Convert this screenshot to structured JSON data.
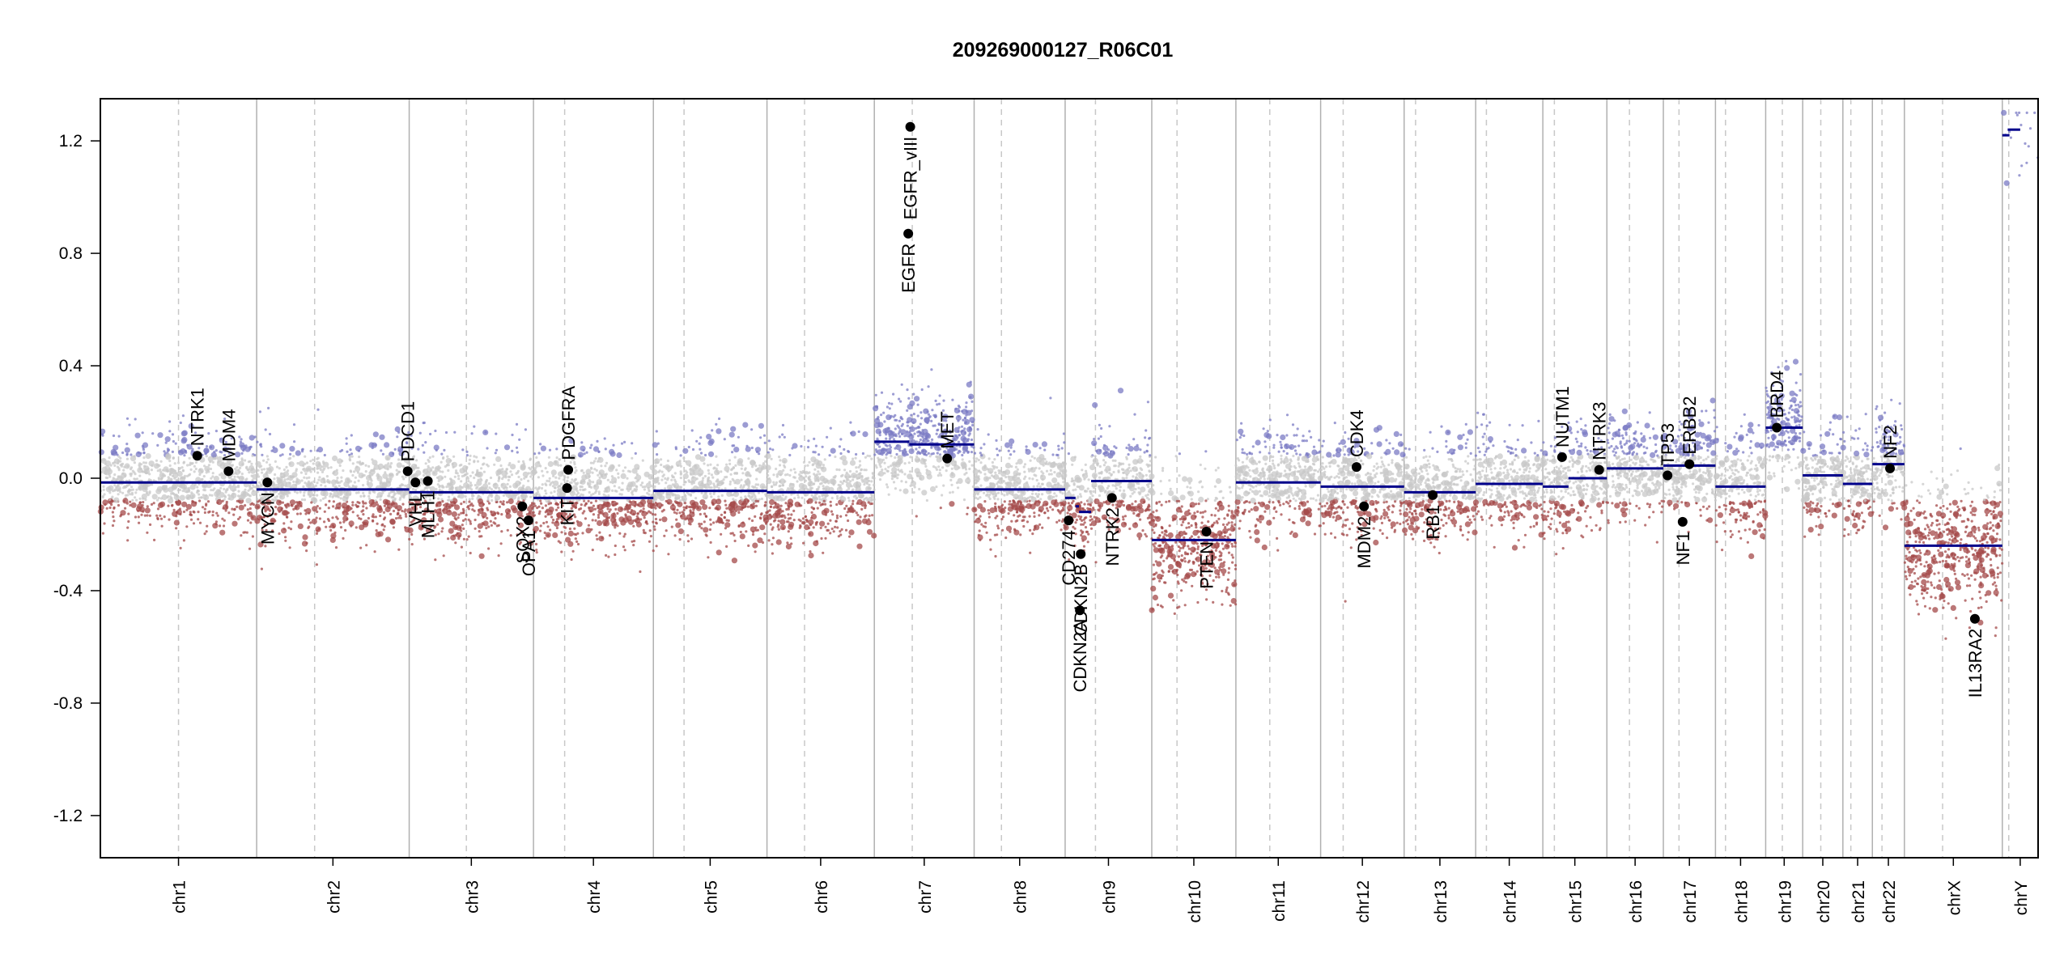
{
  "chart_data": {
    "type": "scatter",
    "title": "209269000127_R06C01",
    "xlabel": "",
    "ylabel": "",
    "ylim": [
      -1.35,
      1.35
    ],
    "yticks": [
      {
        "value": 1.2,
        "label": "1.2"
      },
      {
        "value": 0.8,
        "label": "0.8"
      },
      {
        "value": 0.4,
        "label": "0.4"
      },
      {
        "value": 0.0,
        "label": "0.0"
      },
      {
        "value": -0.4,
        "label": "-0.4"
      },
      {
        "value": -0.8,
        "label": "-0.8"
      },
      {
        "value": -1.2,
        "label": "-1.2"
      }
    ],
    "grid": "chromosome boundaries (solid) and centromeres (dashed)",
    "colors": {
      "axis": "#000000",
      "segment": "#00008b",
      "gain": "#7b7bc4",
      "neutral": "#c8c8c8",
      "loss": "#a44a4a",
      "boundary": "#b0b0b0",
      "centromere": "#c8c8c8",
      "gene_point": "#000000"
    },
    "chromosomes": [
      {
        "name": "chr1",
        "length": 249,
        "centromere": 0.5,
        "segments": [
          [
            0,
            1,
            -0.015
          ]
        ]
      },
      {
        "name": "chr2",
        "length": 243,
        "centromere": 0.38,
        "segments": [
          [
            0,
            1,
            -0.04
          ]
        ]
      },
      {
        "name": "chr3",
        "length": 198,
        "centromere": 0.46,
        "segments": [
          [
            0,
            1,
            -0.05
          ]
        ]
      },
      {
        "name": "chr4",
        "length": 191,
        "centromere": 0.26,
        "segments": [
          [
            0,
            1,
            -0.07
          ]
        ]
      },
      {
        "name": "chr5",
        "length": 181,
        "centromere": 0.27,
        "segments": [
          [
            0,
            1,
            -0.045
          ]
        ]
      },
      {
        "name": "chr6",
        "length": 171,
        "centromere": 0.35,
        "segments": [
          [
            0,
            1,
            -0.05
          ]
        ]
      },
      {
        "name": "chr7",
        "length": 159,
        "centromere": 0.38,
        "segments": [
          [
            0,
            0.35,
            0.13
          ],
          [
            0.35,
            1,
            0.12
          ]
        ]
      },
      {
        "name": "chr8",
        "length": 145,
        "centromere": 0.3,
        "segments": [
          [
            0,
            1,
            -0.04
          ]
        ]
      },
      {
        "name": "chr9",
        "length": 138,
        "centromere": 0.35,
        "segments": [
          [
            0,
            0.12,
            -0.07
          ],
          [
            0.12,
            0.16,
            -0.1
          ],
          [
            0.16,
            0.3,
            -0.12
          ],
          [
            0.3,
            1,
            -0.01
          ]
        ]
      },
      {
        "name": "chr10",
        "length": 134,
        "centromere": 0.3,
        "segments": [
          [
            0,
            1,
            -0.22
          ]
        ]
      },
      {
        "name": "chr11",
        "length": 135,
        "centromere": 0.4,
        "segments": [
          [
            0,
            1,
            -0.015
          ]
        ]
      },
      {
        "name": "chr12",
        "length": 133,
        "centromere": 0.27,
        "segments": [
          [
            0,
            1,
            -0.03
          ]
        ]
      },
      {
        "name": "chr13",
        "length": 114,
        "centromere": 0.16,
        "segments": [
          [
            0,
            1,
            -0.05
          ]
        ]
      },
      {
        "name": "chr14",
        "length": 107,
        "centromere": 0.16,
        "segments": [
          [
            0,
            1,
            -0.02
          ]
        ]
      },
      {
        "name": "chr15",
        "length": 102,
        "centromere": 0.18,
        "segments": [
          [
            0,
            0.4,
            -0.03
          ],
          [
            0.4,
            1,
            0.0
          ]
        ]
      },
      {
        "name": "chr16",
        "length": 90,
        "centromere": 0.4,
        "segments": [
          [
            0,
            1,
            0.035
          ]
        ]
      },
      {
        "name": "chr17",
        "length": 83,
        "centromere": 0.3,
        "segments": [
          [
            0,
            1,
            0.045
          ]
        ]
      },
      {
        "name": "chr18",
        "length": 80,
        "centromere": 0.2,
        "segments": [
          [
            0,
            1,
            -0.03
          ]
        ]
      },
      {
        "name": "chr19",
        "length": 59,
        "centromere": 0.45,
        "segments": [
          [
            0,
            1,
            0.18
          ]
        ]
      },
      {
        "name": "chr20",
        "length": 64,
        "centromere": 0.45,
        "segments": [
          [
            0,
            1,
            0.01
          ]
        ]
      },
      {
        "name": "chr21",
        "length": 47,
        "centromere": 0.27,
        "segments": [
          [
            0,
            1,
            -0.02
          ]
        ]
      },
      {
        "name": "chr22",
        "length": 51,
        "centromere": 0.3,
        "segments": [
          [
            0,
            1,
            0.05
          ]
        ]
      },
      {
        "name": "chrX",
        "length": 156,
        "centromere": 0.39,
        "segments": [
          [
            0,
            1,
            -0.24
          ]
        ]
      },
      {
        "name": "chrY",
        "length": 57,
        "centromere": 0.18,
        "segments": [
          [
            0,
            0.2,
            1.22
          ],
          [
            0.15,
            0.5,
            1.24
          ]
        ]
      }
    ],
    "genes": [
      {
        "name": "NTRK1",
        "chr": "chr1",
        "pos": 0.62,
        "value": 0.08,
        "side": "up"
      },
      {
        "name": "MDM4",
        "chr": "chr1",
        "pos": 0.82,
        "value": 0.025,
        "side": "up"
      },
      {
        "name": "MYCN",
        "chr": "chr2",
        "pos": 0.07,
        "value": -0.015,
        "side": "down"
      },
      {
        "name": "PDCD1",
        "chr": "chr2",
        "pos": 0.99,
        "value": 0.025,
        "side": "up"
      },
      {
        "name": "VHL",
        "chr": "chr3",
        "pos": 0.05,
        "value": -0.015,
        "side": "down"
      },
      {
        "name": "MLH1",
        "chr": "chr3",
        "pos": 0.15,
        "value": -0.01,
        "side": "down"
      },
      {
        "name": "SOX2",
        "chr": "chr3",
        "pos": 0.91,
        "value": -0.1,
        "side": "down"
      },
      {
        "name": "OPA1",
        "chr": "chr3",
        "pos": 0.96,
        "value": -0.15,
        "side": "down"
      },
      {
        "name": "PDGFRA",
        "chr": "chr4",
        "pos": 0.29,
        "value": 0.03,
        "side": "up"
      },
      {
        "name": "KIT",
        "chr": "chr4",
        "pos": 0.28,
        "value": -0.035,
        "side": "down"
      },
      {
        "name": "EGFR_vIII",
        "chr": "chr7",
        "pos": 0.36,
        "value": 1.25,
        "side": "down"
      },
      {
        "name": "EGFR",
        "chr": "chr7",
        "pos": 0.34,
        "value": 0.87,
        "side": "down"
      },
      {
        "name": "MET",
        "chr": "chr7",
        "pos": 0.73,
        "value": 0.07,
        "side": "up"
      },
      {
        "name": "CD274",
        "chr": "chr9",
        "pos": 0.04,
        "value": -0.15,
        "side": "down"
      },
      {
        "name": "CDKN2B",
        "chr": "chr9",
        "pos": 0.18,
        "value": -0.27,
        "side": "down"
      },
      {
        "name": "CDKN2A",
        "chr": "chr9",
        "pos": 0.17,
        "value": -0.47,
        "side": "down"
      },
      {
        "name": "NTRK2",
        "chr": "chr9",
        "pos": 0.54,
        "value": -0.07,
        "side": "down"
      },
      {
        "name": "PTEN",
        "chr": "chr10",
        "pos": 0.65,
        "value": -0.19,
        "side": "down"
      },
      {
        "name": "CDK4",
        "chr": "chr12",
        "pos": 0.43,
        "value": 0.04,
        "side": "up"
      },
      {
        "name": "MDM2",
        "chr": "chr12",
        "pos": 0.52,
        "value": -0.1,
        "side": "down"
      },
      {
        "name": "RB1",
        "chr": "chr13",
        "pos": 0.4,
        "value": -0.06,
        "side": "down"
      },
      {
        "name": "NUTM1",
        "chr": "chr15",
        "pos": 0.3,
        "value": 0.075,
        "side": "up"
      },
      {
        "name": "NTRK3",
        "chr": "chr15",
        "pos": 0.88,
        "value": 0.03,
        "side": "up"
      },
      {
        "name": "TP53",
        "chr": "chr17",
        "pos": 0.08,
        "value": 0.01,
        "side": "up"
      },
      {
        "name": "ERBB2",
        "chr": "chr17",
        "pos": 0.5,
        "value": 0.05,
        "side": "up"
      },
      {
        "name": "NF1",
        "chr": "chr17",
        "pos": 0.37,
        "value": -0.155,
        "side": "down"
      },
      {
        "name": "BRD4",
        "chr": "chr19",
        "pos": 0.3,
        "value": 0.18,
        "side": "up"
      },
      {
        "name": "NF2",
        "chr": "chr22",
        "pos": 0.55,
        "value": 0.035,
        "side": "up"
      },
      {
        "name": "IL13RA2",
        "chr": "chrX",
        "pos": 0.72,
        "value": -0.5,
        "side": "down"
      }
    ]
  }
}
